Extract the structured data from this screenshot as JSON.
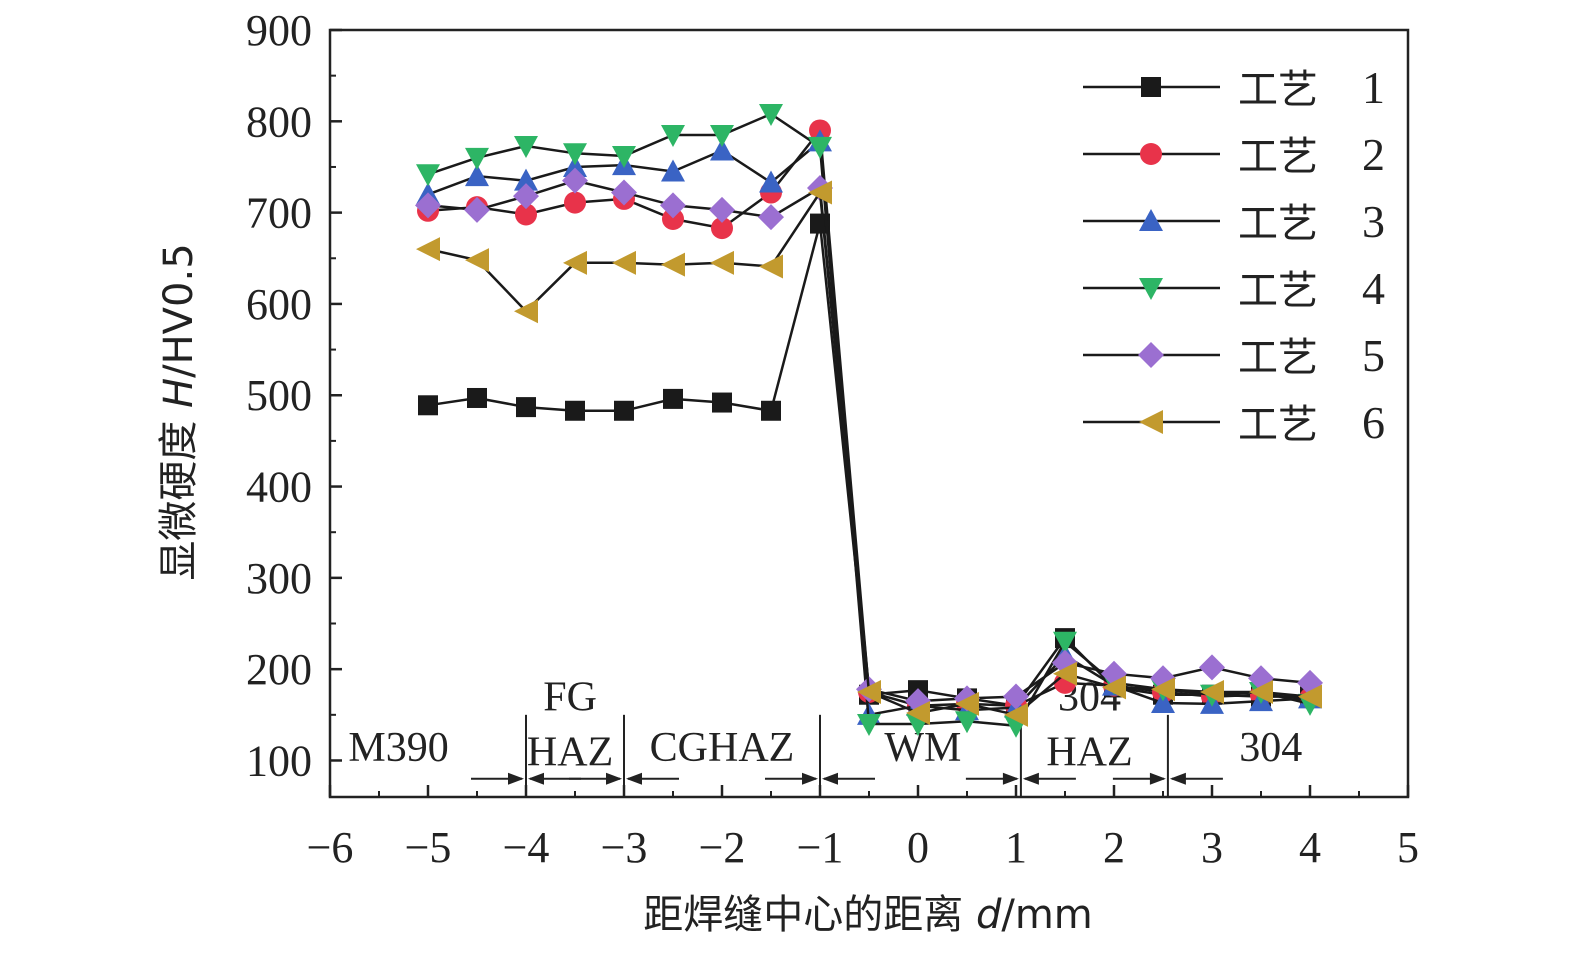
{
  "chart_data": {
    "type": "line",
    "xlabel": {
      "text": "距焊缝中心的距离 ",
      "var": "d",
      "unit": "/mm"
    },
    "ylabel": {
      "text": "显微硬度 ",
      "var": "H",
      "unit": "/HV0.5"
    },
    "xlim": [
      -6,
      5
    ],
    "ylim": [
      60,
      900
    ],
    "x_ticks": [
      "−6",
      "−5",
      "−4",
      "−3",
      "−2",
      "−1",
      "0",
      "1",
      "2",
      "3",
      "4",
      "5"
    ],
    "y_ticks": [
      "100",
      "200",
      "300",
      "400",
      "500",
      "600",
      "700",
      "800",
      "900"
    ],
    "legend_position": "top-right",
    "x": [
      -5,
      -4.5,
      -4,
      -3.5,
      -3,
      -2.5,
      -2,
      -1.5,
      -1,
      -0.5,
      0,
      0.5,
      1,
      1.5,
      2,
      2.5,
      3,
      3.5,
      4
    ],
    "series": [
      {
        "name": "工艺 1",
        "marker": "square",
        "color": "#1a1a1a",
        "values": [
          489,
          497,
          487,
          483,
          483,
          496,
          492,
          483,
          688,
          172,
          177,
          168,
          160,
          234,
          180,
          172,
          172,
          170,
          170
        ]
      },
      {
        "name": "工艺 2",
        "marker": "circle",
        "color": "#e8334a",
        "values": [
          702,
          706,
          698,
          711,
          715,
          693,
          683,
          722,
          790,
          175,
          160,
          162,
          160,
          185,
          182,
          175,
          170,
          172,
          168
        ]
      },
      {
        "name": "工艺 3",
        "marker": "triangle-up",
        "color": "#3a63c4",
        "values": [
          720,
          740,
          735,
          750,
          752,
          745,
          768,
          733,
          778,
          150,
          160,
          155,
          158,
          215,
          182,
          163,
          162,
          165,
          168
        ]
      },
      {
        "name": "工艺 4",
        "marker": "triangle-down",
        "color": "#2db565",
        "values": [
          742,
          760,
          773,
          765,
          762,
          785,
          785,
          808,
          772,
          140,
          140,
          143,
          138,
          230,
          185,
          178,
          172,
          175,
          162
        ]
      },
      {
        "name": "工艺 5",
        "marker": "diamond",
        "color": "#9b6fd1",
        "values": [
          708,
          703,
          718,
          735,
          722,
          708,
          703,
          695,
          727,
          178,
          165,
          168,
          170,
          207,
          195,
          190,
          202,
          190,
          185
        ]
      },
      {
        "name": "工艺 6",
        "marker": "triangle-left",
        "color": "#c29a2e",
        "values": [
          660,
          648,
          592,
          645,
          645,
          643,
          645,
          641,
          722,
          175,
          152,
          162,
          150,
          195,
          180,
          178,
          175,
          175,
          170
        ]
      }
    ],
    "zones": [
      {
        "label": "M390",
        "x": -5.3,
        "y": 115
      },
      {
        "label": "FG",
        "x": -3.55,
        "y": 170
      },
      {
        "label": "HAZ",
        "x": -3.55,
        "y": 110
      },
      {
        "label": "CGHAZ",
        "x": -2.0,
        "y": 115
      },
      {
        "label": "WM",
        "x": 0.05,
        "y": 115
      },
      {
        "label": "304",
        "x": 1.75,
        "y": 170
      },
      {
        "label": "HAZ",
        "x": 1.75,
        "y": 110
      },
      {
        "label": "304",
        "x": 3.6,
        "y": 115
      }
    ],
    "zone_boundaries": [
      -4,
      -3,
      -1,
      1.05,
      2.55
    ]
  }
}
